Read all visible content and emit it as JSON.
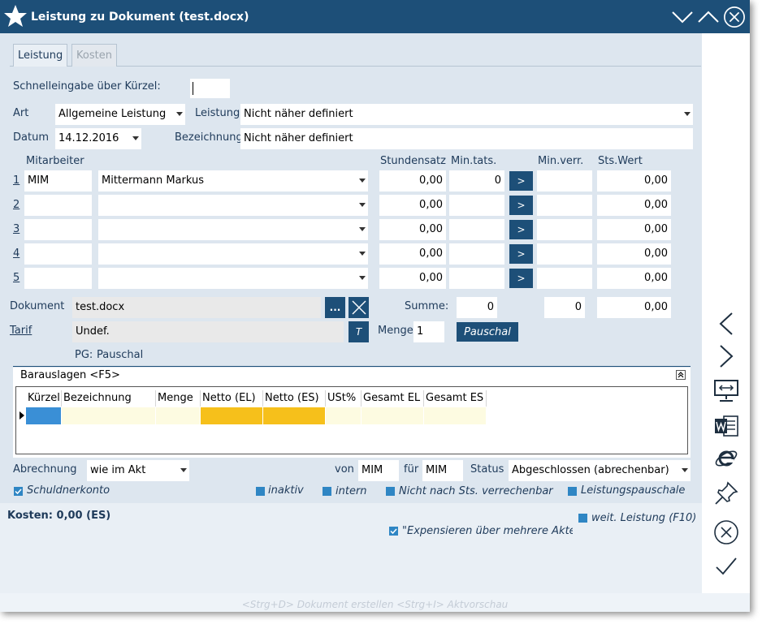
{
  "window": {
    "title": "Leistung zu Dokument (test.docx)"
  },
  "tabs": [
    {
      "label": "Leistung"
    },
    {
      "label": "Kosten"
    }
  ],
  "quick_entry": {
    "label": "Schnelleingabe über Kürzel:",
    "value": ""
  },
  "art": {
    "label": "Art",
    "value": "Allgemeine Leistung"
  },
  "leistung": {
    "label": "Leistung",
    "value": "Nicht näher definiert"
  },
  "datum": {
    "label": "Datum",
    "value": "14.12.2016"
  },
  "bezeichnung": {
    "label": "Bezeichnung",
    "value": "Nicht näher definiert"
  },
  "columns": {
    "mitarbeiter": "Mitarbeiter",
    "stundensatz": "Stundensatz",
    "min_tats": "Min.tats.",
    "min_verr": "Min.verr.",
    "sts_wert": "Sts.Wert"
  },
  "rows": [
    {
      "num": "1",
      "code": "MIM",
      "name": "Mittermann Markus",
      "rate": "0,00",
      "min_tats": "0",
      "arrow": ">",
      "min_verr": "",
      "value": "0,00"
    },
    {
      "num": "2",
      "code": "",
      "name": "",
      "rate": "0,00",
      "min_tats": "",
      "arrow": ">",
      "min_verr": "",
      "value": "0,00"
    },
    {
      "num": "3",
      "code": "",
      "name": "",
      "rate": "0,00",
      "min_tats": "",
      "arrow": ">",
      "min_verr": "",
      "value": "0,00"
    },
    {
      "num": "4",
      "code": "",
      "name": "",
      "rate": "0,00",
      "min_tats": "",
      "arrow": ">",
      "min_verr": "",
      "value": "0,00"
    },
    {
      "num": "5",
      "code": "",
      "name": "",
      "rate": "0,00",
      "min_tats": "",
      "arrow": ">",
      "min_verr": "",
      "value": "0,00"
    }
  ],
  "dokument": {
    "label": "Dokument",
    "value": "test.docx",
    "browse": "..."
  },
  "summe": {
    "label": "Summe:",
    "min_tats": "0",
    "min_verr": "0",
    "value": "0,00"
  },
  "tarif": {
    "label": "Tarif",
    "value": "Undef.",
    "btn": "T"
  },
  "menge": {
    "label": "Menge",
    "value": "1"
  },
  "pauschal_button": "Pauschal",
  "pg": {
    "label": "PG:",
    "value": "Pauschal"
  },
  "barauslagen": {
    "header": "Barauslagen <F5>",
    "columns": [
      "Kürzel",
      "Bezeichnung",
      "Menge",
      "Netto (EL)",
      "Netto (ES)",
      "USt%",
      "Gesamt EL",
      "Gesamt ES"
    ]
  },
  "abrechnung": {
    "label": "Abrechnung",
    "value": "wie im Akt"
  },
  "von": {
    "label": "von",
    "value": "MIM"
  },
  "fuer": {
    "label": "für",
    "value": "MIM"
  },
  "status": {
    "label": "Status",
    "value": "Abgeschlossen (abrechenbar)"
  },
  "checkboxes": {
    "schuldnerkonto": "Schuldnerkonto",
    "inaktiv": "inaktiv",
    "intern": "intern",
    "nicht_sts": "Nicht nach Sts. verrechenbar",
    "pauschale": "Leistungspauschale",
    "weit": "weit. Leistung (F10)",
    "expensieren": "\"Expensieren über mehrere Akten\" a"
  },
  "kosten": "Kosten: 0,00 (ES)",
  "hint": "<Strg+D> Dokument erstellen <Strg+I> Aktvorschau",
  "colors": {
    "titlebar": "#1d4f78",
    "accent": "#2f86c4",
    "netto_highlight": "#f6c01b",
    "grid_row": "#fdfbe1"
  }
}
